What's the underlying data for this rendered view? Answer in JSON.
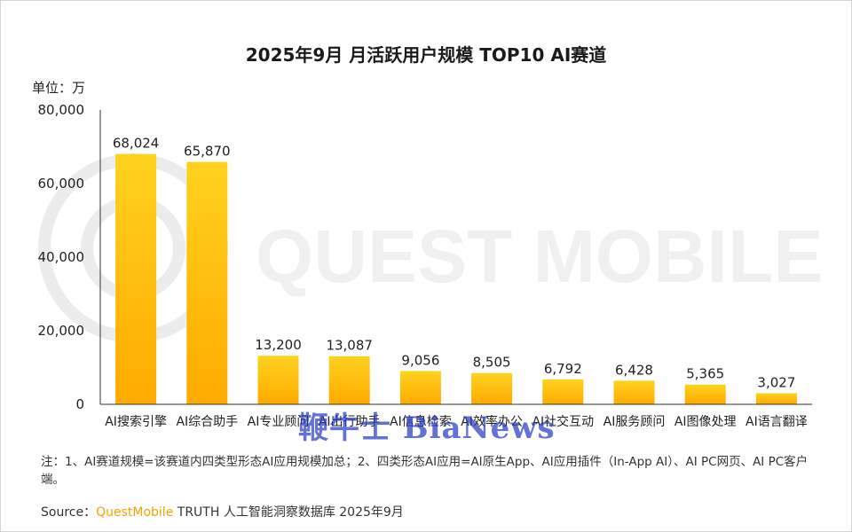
{
  "chart_data": {
    "type": "bar",
    "title": "2025年9月 月活跃用户规模 TOP10 AI赛道",
    "unit_label": "单位：万",
    "categories": [
      "AI搜索引擎",
      "AI综合助手",
      "AI专业顾问",
      "AI出行助手",
      "AI信息检索",
      "AI效率办公",
      "AI社交互动",
      "AI服务顾问",
      "AI图像处理",
      "AI语言翻译"
    ],
    "values": [
      68024,
      65870,
      13200,
      13087,
      9056,
      8505,
      6792,
      6428,
      5365,
      3027
    ],
    "value_labels": [
      "68,024",
      "65,870",
      "13,200",
      "13,087",
      "9,056",
      "8,505",
      "6,792",
      "6,428",
      "5,365",
      "3,027"
    ],
    "ylim": [
      0,
      80000
    ],
    "yticks": [
      0,
      20000,
      40000,
      60000,
      80000
    ],
    "ytick_labels": [
      "0",
      "20,000",
      "40,000",
      "60,000",
      "80,000"
    ],
    "xlabel": "",
    "ylabel": "",
    "grid": false,
    "bar_color_top": "#ffd21f",
    "bar_color_bottom": "#ffaa00"
  },
  "note": "注：1、AI赛道规模=该赛道内四类型形态AI应用规模加总；2、四类形态AI应用=AI原生App、AI应用插件（In-App AI）、AI PC网页、AI PC客户端。",
  "source": {
    "label": "Source：",
    "brand": "QuestMobile",
    "text": " TRUTH 人工智能洞察数据库 2025年9月"
  },
  "watermark": {
    "main": "QUEST MOBILE",
    "secondary": "鞭牛士 BiaNews"
  }
}
